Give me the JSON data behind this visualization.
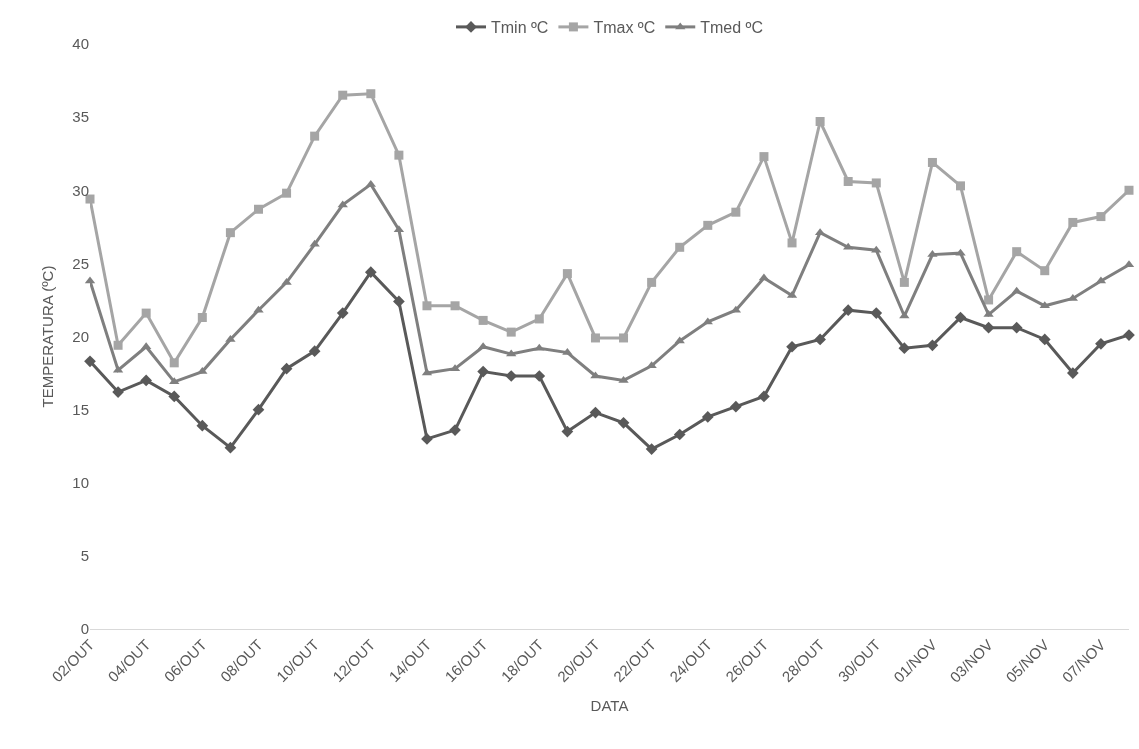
{
  "chart_data": {
    "type": "line",
    "xlabel": "DATA",
    "ylabel": "TEMPERATURA (ºC)",
    "categories": [
      "02/OUT",
      null,
      "04/OUT",
      null,
      "06/OUT",
      null,
      "08/OUT",
      null,
      "10/OUT",
      null,
      "12/OUT",
      null,
      "14/OUT",
      null,
      "16/OUT",
      null,
      "18/OUT",
      null,
      "20/OUT",
      null,
      "22/OUT",
      null,
      "24/OUT",
      null,
      "26/OUT",
      null,
      "28/OUT",
      null,
      "30/OUT",
      null,
      "01/NOV",
      null,
      "03/NOV",
      null,
      "05/NOV",
      null,
      "07/NOV",
      null
    ],
    "series": [
      {
        "name": "Tmin ºC",
        "color": "#595959",
        "marker": "diamond",
        "values": [
          18.3,
          16.2,
          17,
          15.9,
          13.9,
          12.4,
          15,
          17.8,
          19,
          21.6,
          24.4,
          22.4,
          13,
          13.6,
          17.6,
          17.3,
          17.3,
          13.5,
          14.8,
          14.1,
          12.3,
          13.3,
          14.5,
          15.2,
          15.9,
          19.3,
          19.8,
          21.8,
          21.6,
          19.2,
          19.4,
          21.3,
          20.6,
          20.6,
          19.8,
          17.5,
          19.5,
          20.1
        ]
      },
      {
        "name": "Tmax ºC",
        "color": "#a5a5a5",
        "marker": "square",
        "values": [
          29.4,
          19.4,
          21.6,
          18.2,
          21.3,
          27.1,
          28.7,
          29.8,
          33.7,
          36.5,
          36.6,
          32.4,
          22.1,
          22.1,
          21.1,
          20.3,
          21.2,
          24.3,
          19.9,
          19.9,
          23.7,
          26.1,
          27.6,
          28.5,
          32.3,
          26.4,
          34.7,
          30.6,
          30.5,
          23.7,
          31.9,
          30.3,
          22.5,
          25.8,
          24.5,
          27.8,
          28.2,
          30.0
        ]
      },
      {
        "name": "Tmed ºC",
        "color": "#7f7f7f",
        "marker": "triangle",
        "values": [
          23.8,
          17.7,
          19.3,
          16.9,
          17.6,
          19.8,
          21.8,
          23.7,
          26.3,
          29,
          30.4,
          27.3,
          17.5,
          17.8,
          19.3,
          18.8,
          19.2,
          18.9,
          17.3,
          17,
          18,
          19.7,
          21,
          21.8,
          24,
          22.8,
          27.1,
          26.1,
          25.9,
          21.4,
          25.6,
          25.7,
          21.5,
          23.1,
          22.1,
          22.6,
          23.8,
          24.9
        ]
      }
    ],
    "ylim": [
      0,
      40
    ],
    "yticks": [
      0,
      5,
      10,
      15,
      20,
      25,
      30,
      35,
      40
    ],
    "grid": false,
    "legend": "top",
    "line_style": "solid"
  }
}
